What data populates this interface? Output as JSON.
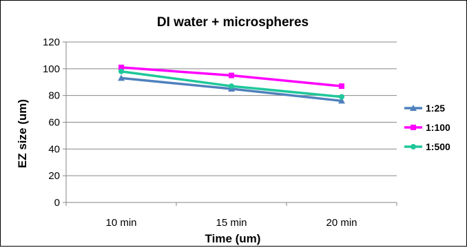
{
  "chart_data": {
    "type": "line",
    "title": "DI water + microspheres",
    "xlabel": "Time (um)",
    "ylabel": "EZ size (um)",
    "categories": [
      "10 min",
      "15 min",
      "20 min"
    ],
    "ylim": [
      0,
      120
    ],
    "yticks": [
      "0",
      "20",
      "40",
      "60",
      "80",
      "100",
      "120"
    ],
    "grid": true,
    "legend_position": "right",
    "series": [
      {
        "name": "1:25",
        "values": [
          93,
          85,
          76
        ],
        "color": "#4F81BD",
        "marker": "triangle"
      },
      {
        "name": "1:100",
        "values": [
          101,
          95,
          87
        ],
        "color": "#FF00FF",
        "marker": "square"
      },
      {
        "name": "1:500",
        "values": [
          98,
          87,
          79
        ],
        "color": "#1FC79A",
        "marker": "circle"
      }
    ]
  }
}
